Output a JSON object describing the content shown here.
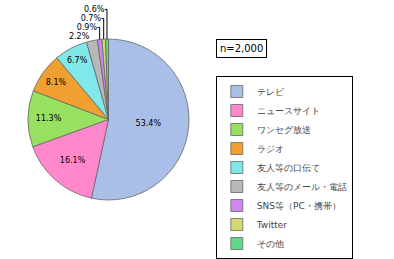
{
  "chart_data": {
    "type": "pie",
    "categories": [
      "テレビ",
      "ニュースサイト",
      "ワンセグ放送",
      "ラジオ",
      "友人等の口伝て",
      "友人等のメール・電話",
      "SNS等（PC・携帯）",
      "Twitter",
      "その他"
    ],
    "values": [
      53.4,
      16.1,
      11.3,
      8.1,
      6.7,
      2.2,
      0.9,
      0.7,
      0.6
    ],
    "value_labels": [
      "53.4%",
      "16.1%",
      "11.3%",
      "8.1%",
      "6.7%",
      "2.2%",
      "0.9%",
      "0.7%",
      "0.6%"
    ],
    "colors": [
      "#aabfe8",
      "#ff88cc",
      "#98e060",
      "#f0a030",
      "#80e8e8",
      "#b8b8b8",
      "#cc88ee",
      "#d8d870",
      "#60d888"
    ],
    "data_labels": true,
    "legend": "right",
    "annotations": [
      "n=2,000"
    ]
  }
}
